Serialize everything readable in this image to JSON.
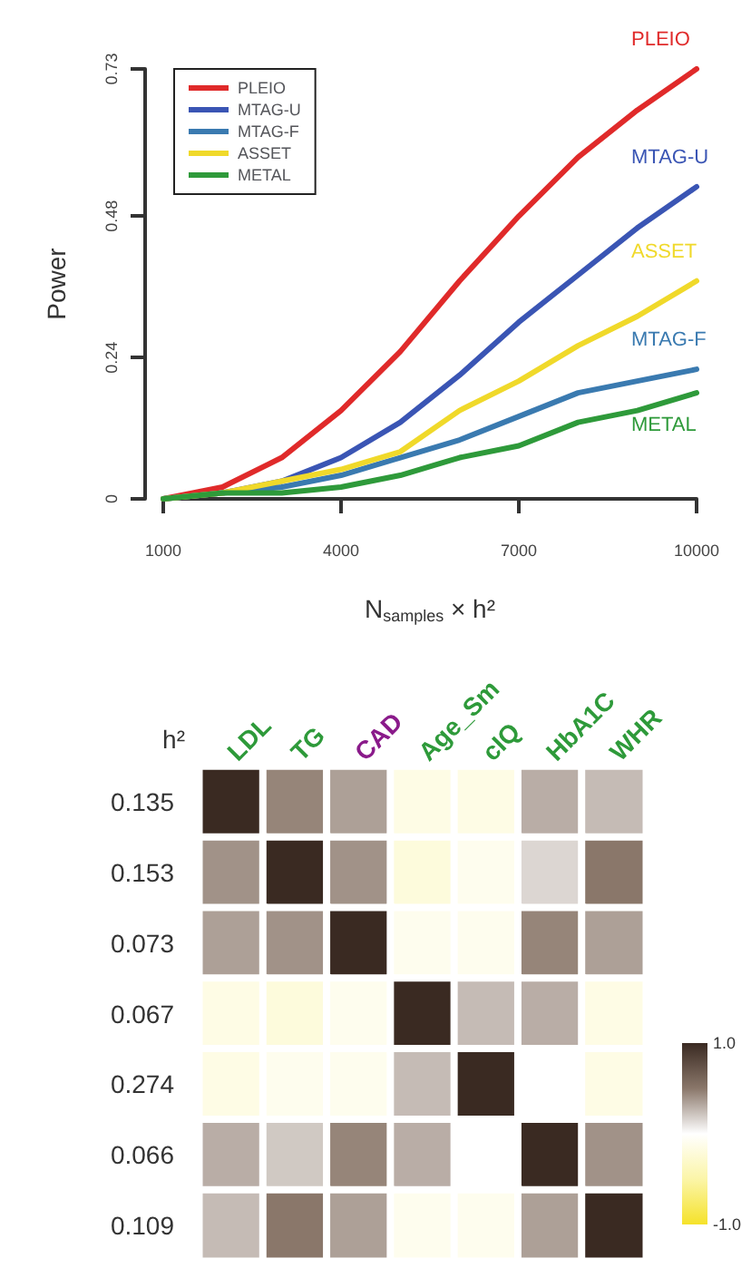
{
  "chart_data": [
    {
      "type": "line",
      "xlabel": "N$_{samples}$ × h²",
      "ylabel": "Power",
      "x": [
        1000,
        2000,
        3000,
        4000,
        5000,
        6000,
        7000,
        8000,
        9000,
        10000
      ],
      "series": [
        {
          "name": "PLEIO",
          "color": "#e02a2a",
          "values": [
            0,
            0.02,
            0.07,
            0.15,
            0.25,
            0.37,
            0.48,
            0.58,
            0.66,
            0.73
          ]
        },
        {
          "name": "MTAG-U",
          "color": "#3a55b4",
          "values": [
            0,
            0.01,
            0.03,
            0.07,
            0.13,
            0.21,
            0.3,
            0.38,
            0.46,
            0.53
          ]
        },
        {
          "name": "MTAG-F",
          "color": "#3a7ab0",
          "values": [
            0,
            0.01,
            0.02,
            0.04,
            0.07,
            0.1,
            0.14,
            0.18,
            0.2,
            0.22
          ]
        },
        {
          "name": "ASSET",
          "color": "#f0d92a",
          "values": [
            0,
            0.01,
            0.03,
            0.05,
            0.08,
            0.15,
            0.2,
            0.26,
            0.31,
            0.37
          ]
        },
        {
          "name": "METAL",
          "color": "#2e9a3a",
          "values": [
            0,
            0.01,
            0.01,
            0.02,
            0.04,
            0.07,
            0.09,
            0.13,
            0.15,
            0.18
          ]
        }
      ],
      "xlim": [
        1000,
        10000
      ],
      "xticks": [
        1000,
        4000,
        7000,
        10000
      ],
      "ylim": [
        0,
        0.73
      ],
      "yticks": [
        0,
        0.24,
        0.48,
        0.73
      ],
      "legend": "top left",
      "grid": false,
      "marker": "none",
      "line_style": "solid"
    },
    {
      "type": "heatmap",
      "ylabel": "h²",
      "categories": [
        "LDL",
        "TG",
        "CAD",
        "Age_Sm",
        "cIQ",
        "HbA1C",
        "WHR"
      ],
      "y_categories": [
        "0.135",
        "0.153",
        "0.073",
        "0.067",
        "0.274",
        "0.066",
        "0.109"
      ],
      "cells": [
        [
          1,
          0.45,
          0.35,
          -0.15,
          -0.15,
          0.3,
          0.25
        ],
        [
          0.4,
          1,
          0.4,
          -0.2,
          -0.1,
          0.15,
          0.5
        ],
        [
          0.35,
          0.4,
          1,
          -0.1,
          -0.1,
          0.45,
          0.35
        ],
        [
          -0.15,
          -0.2,
          -0.1,
          1,
          0.25,
          0.3,
          -0.15
        ],
        [
          -0.15,
          -0.1,
          -0.1,
          0.25,
          1,
          0,
          -0.15
        ],
        [
          0.3,
          0.2,
          0.45,
          0.3,
          0,
          1,
          0.4
        ],
        [
          0.25,
          0.5,
          0.35,
          -0.1,
          -0.1,
          0.35,
          1
        ]
      ],
      "clim": [
        -1,
        1
      ],
      "cticks": [
        {
          "value": -1,
          "label": "-1.0"
        },
        {
          "value": 1,
          "label": "1.0"
        }
      ]
    }
  ]
}
